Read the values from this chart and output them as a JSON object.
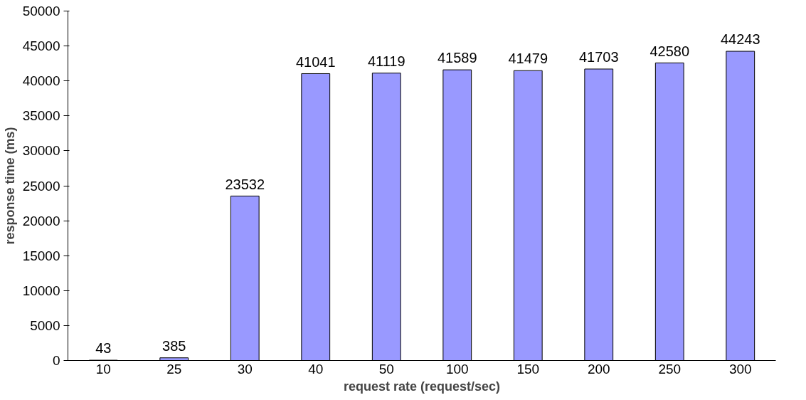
{
  "chart_data": {
    "type": "bar",
    "xlabel": "request rate (request/sec)",
    "ylabel": "response time (ms)",
    "categories": [
      "10",
      "25",
      "30",
      "40",
      "50",
      "100",
      "150",
      "200",
      "250",
      "300"
    ],
    "values": [
      43,
      385,
      23532,
      41041,
      41119,
      41589,
      41479,
      41703,
      42580,
      44243
    ],
    "color": "#9999ff",
    "ylim": [
      0,
      50000
    ],
    "yticks": [
      0,
      5000,
      10000,
      15000,
      20000,
      25000,
      30000,
      35000,
      40000,
      45000,
      50000
    ],
    "grid": false,
    "data_labels": true
  }
}
